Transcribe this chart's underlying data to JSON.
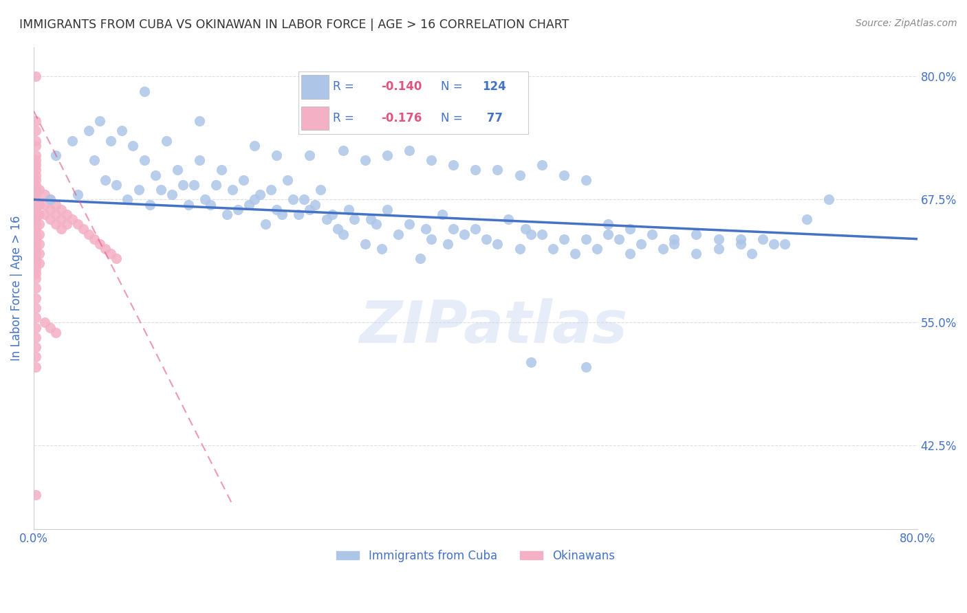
{
  "title": "IMMIGRANTS FROM CUBA VS OKINAWAN IN LABOR FORCE | AGE > 16 CORRELATION CHART",
  "source": "Source: ZipAtlas.com",
  "ylabel": "In Labor Force | Age > 16",
  "right_yticks": [
    80.0,
    67.5,
    55.0,
    42.5
  ],
  "right_ytick_labels": [
    "80.0%",
    "67.5%",
    "55.0%",
    "42.5%"
  ],
  "legend_entries": [
    {
      "label": "Immigrants from Cuba",
      "color": "#adc6e8",
      "R": "-0.140",
      "N": "124"
    },
    {
      "label": "Okinawans",
      "color": "#f4b0c4",
      "R": "-0.176",
      "N": " 77"
    }
  ],
  "watermark": "ZIPatlas",
  "cuba_scatter": [
    [
      1.5,
      67.5
    ],
    [
      2.0,
      72.0
    ],
    [
      3.5,
      73.5
    ],
    [
      4.0,
      68.0
    ],
    [
      5.0,
      74.5
    ],
    [
      5.5,
      71.5
    ],
    [
      6.0,
      75.5
    ],
    [
      6.5,
      69.5
    ],
    [
      7.0,
      73.5
    ],
    [
      7.5,
      69.0
    ],
    [
      8.0,
      74.5
    ],
    [
      8.5,
      67.5
    ],
    [
      9.0,
      73.0
    ],
    [
      9.5,
      68.5
    ],
    [
      10.0,
      71.5
    ],
    [
      10.5,
      67.0
    ],
    [
      11.0,
      70.0
    ],
    [
      11.5,
      68.5
    ],
    [
      12.0,
      73.5
    ],
    [
      12.5,
      68.0
    ],
    [
      13.0,
      70.5
    ],
    [
      13.5,
      69.0
    ],
    [
      14.0,
      67.0
    ],
    [
      14.5,
      69.0
    ],
    [
      15.0,
      71.5
    ],
    [
      15.5,
      67.5
    ],
    [
      16.0,
      67.0
    ],
    [
      16.5,
      69.0
    ],
    [
      17.0,
      70.5
    ],
    [
      17.5,
      66.0
    ],
    [
      18.0,
      68.5
    ],
    [
      18.5,
      66.5
    ],
    [
      19.0,
      69.5
    ],
    [
      19.5,
      67.0
    ],
    [
      20.0,
      67.5
    ],
    [
      20.5,
      68.0
    ],
    [
      21.0,
      65.0
    ],
    [
      21.5,
      68.5
    ],
    [
      22.0,
      66.5
    ],
    [
      22.5,
      66.0
    ],
    [
      23.0,
      69.5
    ],
    [
      23.5,
      67.5
    ],
    [
      24.0,
      66.0
    ],
    [
      24.5,
      67.5
    ],
    [
      25.0,
      66.5
    ],
    [
      25.5,
      67.0
    ],
    [
      26.0,
      68.5
    ],
    [
      26.5,
      65.5
    ],
    [
      27.0,
      66.0
    ],
    [
      27.5,
      64.5
    ],
    [
      28.0,
      64.0
    ],
    [
      28.5,
      66.5
    ],
    [
      29.0,
      65.5
    ],
    [
      30.0,
      63.0
    ],
    [
      30.5,
      65.5
    ],
    [
      31.0,
      65.0
    ],
    [
      31.5,
      62.5
    ],
    [
      32.0,
      66.5
    ],
    [
      33.0,
      64.0
    ],
    [
      34.0,
      65.0
    ],
    [
      35.0,
      61.5
    ],
    [
      35.5,
      64.5
    ],
    [
      36.0,
      63.5
    ],
    [
      37.0,
      66.0
    ],
    [
      37.5,
      63.0
    ],
    [
      38.0,
      64.5
    ],
    [
      39.0,
      64.0
    ],
    [
      40.0,
      64.5
    ],
    [
      41.0,
      63.5
    ],
    [
      42.0,
      63.0
    ],
    [
      43.0,
      65.5
    ],
    [
      44.0,
      62.5
    ],
    [
      44.5,
      64.5
    ],
    [
      45.0,
      64.0
    ],
    [
      46.0,
      64.0
    ],
    [
      47.0,
      62.5
    ],
    [
      48.0,
      63.5
    ],
    [
      49.0,
      62.0
    ],
    [
      50.0,
      63.5
    ],
    [
      51.0,
      62.5
    ],
    [
      52.0,
      65.0
    ],
    [
      53.0,
      63.5
    ],
    [
      54.0,
      62.0
    ],
    [
      55.0,
      63.0
    ],
    [
      57.0,
      62.5
    ],
    [
      58.0,
      63.0
    ],
    [
      60.0,
      62.0
    ],
    [
      62.0,
      62.5
    ],
    [
      64.0,
      63.0
    ],
    [
      65.0,
      62.0
    ],
    [
      66.0,
      63.5
    ],
    [
      67.0,
      63.0
    ],
    [
      68.0,
      63.0
    ],
    [
      70.0,
      65.5
    ],
    [
      72.0,
      67.5
    ],
    [
      10.0,
      78.5
    ],
    [
      15.0,
      75.5
    ],
    [
      20.0,
      73.0
    ],
    [
      22.0,
      72.0
    ],
    [
      25.0,
      72.0
    ],
    [
      28.0,
      72.5
    ],
    [
      30.0,
      71.5
    ],
    [
      32.0,
      72.0
    ],
    [
      34.0,
      72.5
    ],
    [
      36.0,
      71.5
    ],
    [
      38.0,
      71.0
    ],
    [
      40.0,
      70.5
    ],
    [
      42.0,
      70.5
    ],
    [
      44.0,
      70.0
    ],
    [
      46.0,
      71.0
    ],
    [
      48.0,
      70.0
    ],
    [
      50.0,
      69.5
    ],
    [
      52.0,
      64.0
    ],
    [
      54.0,
      64.5
    ],
    [
      56.0,
      64.0
    ],
    [
      58.0,
      63.5
    ],
    [
      60.0,
      64.0
    ],
    [
      62.0,
      63.5
    ],
    [
      64.0,
      63.5
    ],
    [
      45.0,
      51.0
    ],
    [
      50.0,
      50.5
    ]
  ],
  "okinawa_scatter": [
    [
      0.2,
      80.0
    ],
    [
      0.2,
      75.5
    ],
    [
      0.2,
      74.5
    ],
    [
      0.2,
      73.5
    ],
    [
      0.2,
      73.0
    ],
    [
      0.2,
      72.0
    ],
    [
      0.2,
      71.5
    ],
    [
      0.2,
      71.0
    ],
    [
      0.2,
      70.5
    ],
    [
      0.2,
      70.0
    ],
    [
      0.2,
      69.5
    ],
    [
      0.2,
      69.0
    ],
    [
      0.2,
      68.5
    ],
    [
      0.2,
      68.0
    ],
    [
      0.2,
      67.5
    ],
    [
      0.2,
      67.0
    ],
    [
      0.2,
      66.5
    ],
    [
      0.2,
      66.0
    ],
    [
      0.2,
      65.5
    ],
    [
      0.2,
      65.0
    ],
    [
      0.2,
      64.5
    ],
    [
      0.2,
      64.0
    ],
    [
      0.2,
      63.5
    ],
    [
      0.2,
      63.0
    ],
    [
      0.2,
      62.5
    ],
    [
      0.2,
      62.0
    ],
    [
      0.2,
      61.5
    ],
    [
      0.2,
      61.0
    ],
    [
      0.2,
      60.5
    ],
    [
      0.2,
      60.0
    ],
    [
      0.2,
      59.5
    ],
    [
      0.2,
      58.5
    ],
    [
      0.2,
      57.5
    ],
    [
      0.2,
      56.5
    ],
    [
      0.2,
      55.5
    ],
    [
      0.2,
      54.5
    ],
    [
      0.2,
      53.5
    ],
    [
      0.2,
      52.5
    ],
    [
      0.2,
      51.5
    ],
    [
      0.2,
      50.5
    ],
    [
      0.5,
      68.5
    ],
    [
      0.5,
      67.0
    ],
    [
      0.5,
      66.0
    ],
    [
      0.5,
      65.0
    ],
    [
      0.5,
      64.0
    ],
    [
      0.5,
      63.0
    ],
    [
      0.5,
      62.0
    ],
    [
      0.5,
      61.0
    ],
    [
      1.0,
      68.0
    ],
    [
      1.0,
      67.0
    ],
    [
      1.0,
      66.0
    ],
    [
      1.5,
      67.5
    ],
    [
      1.5,
      66.5
    ],
    [
      1.5,
      65.5
    ],
    [
      2.0,
      67.0
    ],
    [
      2.0,
      66.0
    ],
    [
      2.0,
      65.0
    ],
    [
      2.5,
      66.5
    ],
    [
      2.5,
      65.5
    ],
    [
      2.5,
      64.5
    ],
    [
      3.0,
      66.0
    ],
    [
      3.0,
      65.0
    ],
    [
      3.5,
      65.5
    ],
    [
      4.0,
      65.0
    ],
    [
      4.5,
      64.5
    ],
    [
      5.0,
      64.0
    ],
    [
      5.5,
      63.5
    ],
    [
      6.0,
      63.0
    ],
    [
      6.5,
      62.5
    ],
    [
      7.0,
      62.0
    ],
    [
      7.5,
      61.5
    ],
    [
      1.0,
      55.0
    ],
    [
      1.5,
      54.5
    ],
    [
      2.0,
      54.0
    ],
    [
      0.2,
      37.5
    ]
  ],
  "cuba_trend": {
    "x_start": 0,
    "x_end": 80,
    "y_start": 67.5,
    "y_end": 63.5
  },
  "okinawa_trend": {
    "x_start": 0,
    "x_end": 18,
    "y_start": 76.5,
    "y_end": 36.5
  },
  "xlim": [
    0,
    80
  ],
  "ylim": [
    34,
    83
  ],
  "background_color": "#ffffff",
  "grid_color": "#dddddd",
  "title_color": "#333333",
  "axis_label_color": "#4472c4",
  "tick_label_color": "#4472c4",
  "legend_text_color": "#4472c4",
  "r_value_color": "#e05580",
  "n_value_color": "#4472c4",
  "cuba_line_color": "#4472c4",
  "oki_line_color": "#e05580"
}
